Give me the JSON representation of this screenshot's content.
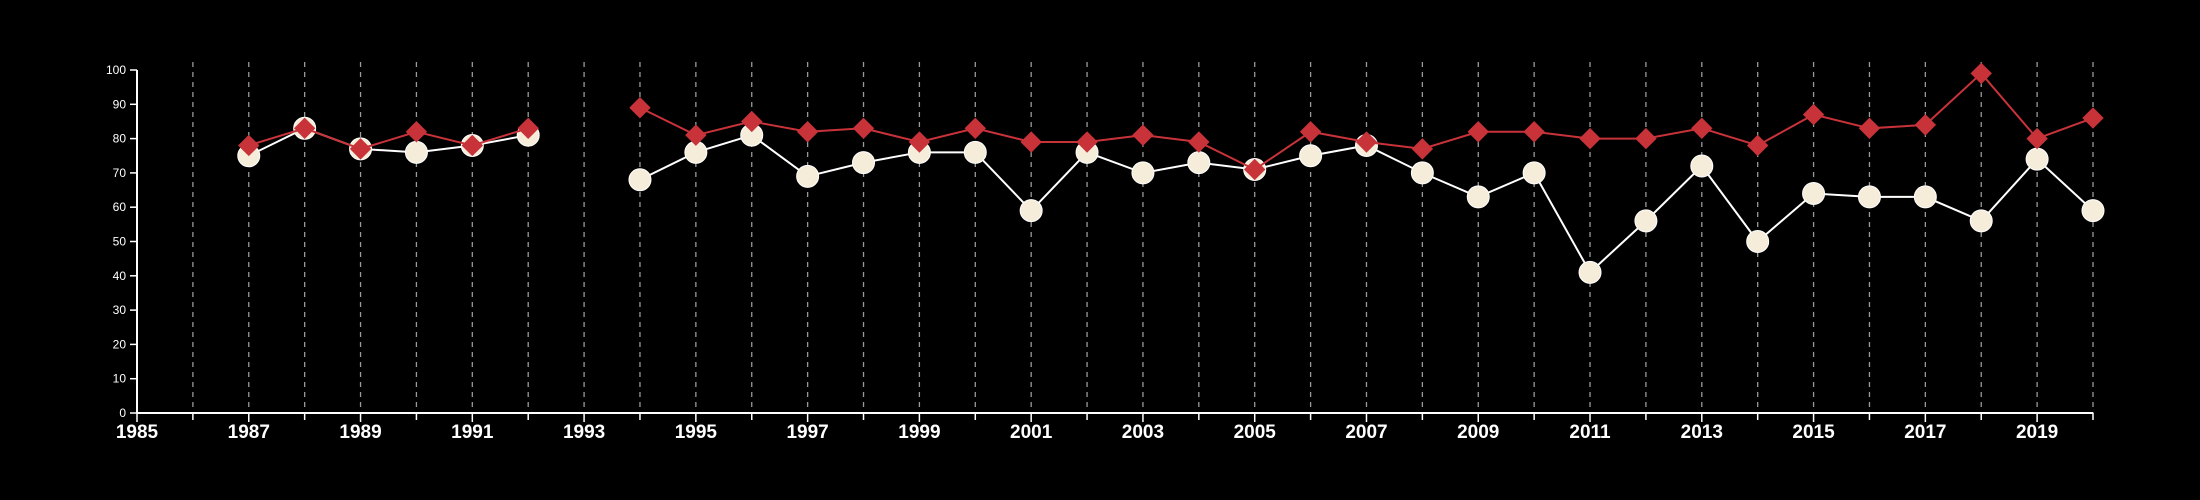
{
  "chart_data": {
    "type": "line",
    "title": "",
    "xlabel": "",
    "ylabel": "",
    "xlim": [
      1985,
      2020
    ],
    "ylim": [
      0,
      100
    ],
    "x_ticks": [
      1985,
      1987,
      1989,
      1991,
      1993,
      1995,
      1997,
      1999,
      2001,
      2003,
      2005,
      2007,
      2009,
      2011,
      2013,
      2015,
      2017,
      2019
    ],
    "y_ticks": [
      0,
      10,
      20,
      30,
      40,
      50,
      60,
      70,
      80,
      90,
      100
    ],
    "grid": "vertical dashed lines at every year",
    "legend": "none",
    "series": [
      {
        "color": "#f5ecd9",
        "marker": "circle",
        "line_color": "#ffffff",
        "x": [
          1987,
          1988,
          1989,
          1990,
          1991,
          1992,
          1994,
          1995,
          1996,
          1997,
          1998,
          1999,
          2000,
          2001,
          2002,
          2003,
          2004,
          2005,
          2006,
          2007,
          2008,
          2009,
          2010,
          2011,
          2012,
          2013,
          2014,
          2015,
          2016,
          2017,
          2018,
          2019,
          2020
        ],
        "values": [
          75,
          83,
          77,
          76,
          78,
          81,
          68,
          76,
          81,
          69,
          73,
          76,
          76,
          59,
          76,
          70,
          73,
          71,
          75,
          78,
          70,
          63,
          70,
          41,
          56,
          72,
          50,
          64,
          63,
          63,
          56,
          74,
          59
        ]
      },
      {
        "color": "#c8333a",
        "marker": "diamond",
        "line_color": "#c8333a",
        "x": [
          1987,
          1988,
          1989,
          1990,
          1991,
          1992,
          1994,
          1995,
          1996,
          1997,
          1998,
          1999,
          2000,
          2001,
          2002,
          2003,
          2004,
          2005,
          2006,
          2007,
          2008,
          2009,
          2010,
          2011,
          2012,
          2013,
          2014,
          2015,
          2016,
          2017,
          2018,
          2019,
          2020
        ],
        "values": [
          78,
          83,
          77,
          82,
          78,
          83,
          89,
          81,
          85,
          82,
          83,
          79,
          83,
          79,
          79,
          81,
          79,
          71,
          82,
          79,
          77,
          82,
          82,
          80,
          80,
          83,
          78,
          87,
          83,
          84,
          99,
          80,
          86
        ]
      }
    ]
  }
}
